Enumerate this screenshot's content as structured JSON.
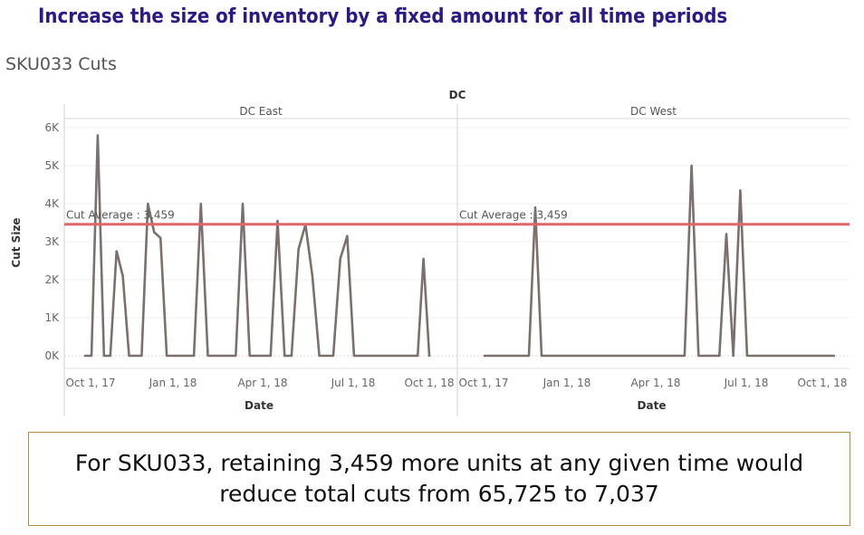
{
  "slide_title": "Increase the size of inventory by a fixed amount for all time periods",
  "sheet_title": "SKU033 Cuts",
  "callout": "For SKU033, retaining 3,459 more units at any given time would reduce total cuts from 65,725 to 7,037",
  "colors": {
    "title": "#2b1a86",
    "series": "#7b706b",
    "reference_line": "#e0666a",
    "callout_border": "#b08d3c"
  },
  "chart_data": {
    "type": "line",
    "column_header": "DC",
    "xlabel": "Date",
    "ylabel": "Cut Size",
    "ylim": [
      0,
      6000
    ],
    "y_ticks": [
      0,
      1000,
      2000,
      3000,
      4000,
      5000,
      6000
    ],
    "y_tick_labels": [
      "0K",
      "1K",
      "2K",
      "3K",
      "4K",
      "5K",
      "6K"
    ],
    "x_tick_labels": [
      "Oct 1, 17",
      "Jan 1, 18",
      "Apr 1, 18",
      "Jul 1, 18",
      "Oct 1, 18"
    ],
    "reference_line": {
      "label": "Cut Average : 3,459",
      "value": 3459
    },
    "grid": true,
    "panels": [
      {
        "name": "DC East",
        "series": [
          {
            "x": [
              "2017-09-25",
              "2017-10-02",
              "2017-10-09",
              "2017-10-16",
              "2017-10-23",
              "2017-10-30",
              "2017-11-06",
              "2017-11-13",
              "2017-11-20",
              "2017-11-27",
              "2017-12-04",
              "2017-12-11",
              "2017-12-18",
              "2017-12-25",
              "2018-01-01",
              "2018-01-08",
              "2018-01-15",
              "2018-01-22",
              "2018-01-29",
              "2018-02-05",
              "2018-02-12",
              "2018-02-19",
              "2018-02-26",
              "2018-03-05",
              "2018-03-12",
              "2018-03-19",
              "2018-03-26",
              "2018-04-02",
              "2018-04-09",
              "2018-04-16",
              "2018-04-23",
              "2018-04-30",
              "2018-05-07",
              "2018-05-14",
              "2018-05-21",
              "2018-05-28",
              "2018-06-04",
              "2018-06-11",
              "2018-06-18",
              "2018-06-25",
              "2018-07-02",
              "2018-07-09",
              "2018-07-16",
              "2018-07-23",
              "2018-07-30",
              "2018-08-06",
              "2018-08-13",
              "2018-08-20",
              "2018-08-27",
              "2018-09-03",
              "2018-09-10",
              "2018-09-17",
              "2018-09-24",
              "2018-10-01"
            ],
            "y": [
              0,
              0,
              5800,
              0,
              0,
              2750,
              2100,
              0,
              0,
              0,
              4000,
              3250,
              3100,
              0,
              0,
              0,
              0,
              0,
              4000,
              0,
              0,
              0,
              0,
              0,
              4000,
              0,
              0,
              0,
              0,
              3550,
              0,
              0,
              2800,
              3450,
              2100,
              0,
              0,
              0,
              2550,
              3150,
              0,
              0,
              0,
              0,
              0,
              0,
              0,
              0,
              0,
              0,
              0,
              0,
              2550,
              0
            ]
          }
        ]
      },
      {
        "name": "DC West",
        "series": [
          {
            "x": [
              "2017-10-02",
              "2017-10-09",
              "2017-10-16",
              "2017-10-23",
              "2017-10-30",
              "2017-11-06",
              "2017-11-13",
              "2017-11-20",
              "2017-11-27",
              "2017-12-04",
              "2017-12-11",
              "2017-12-18",
              "2017-12-25",
              "2018-01-01",
              "2018-01-08",
              "2018-01-15",
              "2018-01-22",
              "2018-01-29",
              "2018-02-05",
              "2018-02-12",
              "2018-02-19",
              "2018-02-26",
              "2018-03-05",
              "2018-03-12",
              "2018-03-19",
              "2018-03-26",
              "2018-04-02",
              "2018-04-09",
              "2018-04-16",
              "2018-04-23",
              "2018-04-30",
              "2018-05-07",
              "2018-05-14",
              "2018-05-21",
              "2018-05-28",
              "2018-06-04",
              "2018-06-11",
              "2018-06-18",
              "2018-06-25",
              "2018-07-02",
              "2018-07-09",
              "2018-07-16",
              "2018-07-23",
              "2018-07-30",
              "2018-08-06",
              "2018-08-13",
              "2018-08-20",
              "2018-08-27",
              "2018-09-03",
              "2018-09-10",
              "2018-09-17",
              "2018-09-24",
              "2018-10-01",
              "2018-10-08",
              "2018-10-15"
            ],
            "y": [
              0,
              0,
              0,
              0,
              0,
              0,
              0,
              0,
              3900,
              0,
              0,
              0,
              0,
              0,
              0,
              0,
              0,
              0,
              0,
              0,
              0,
              0,
              0,
              0,
              0,
              0,
              0,
              0,
              0,
              0,
              0,
              5000,
              0,
              0,
              0,
              0,
              3200,
              0,
              4350,
              0,
              0,
              0,
              0,
              0,
              0,
              0,
              0,
              0,
              0,
              0,
              0,
              0,
              0,
              0,
              0
            ]
          }
        ]
      }
    ]
  }
}
